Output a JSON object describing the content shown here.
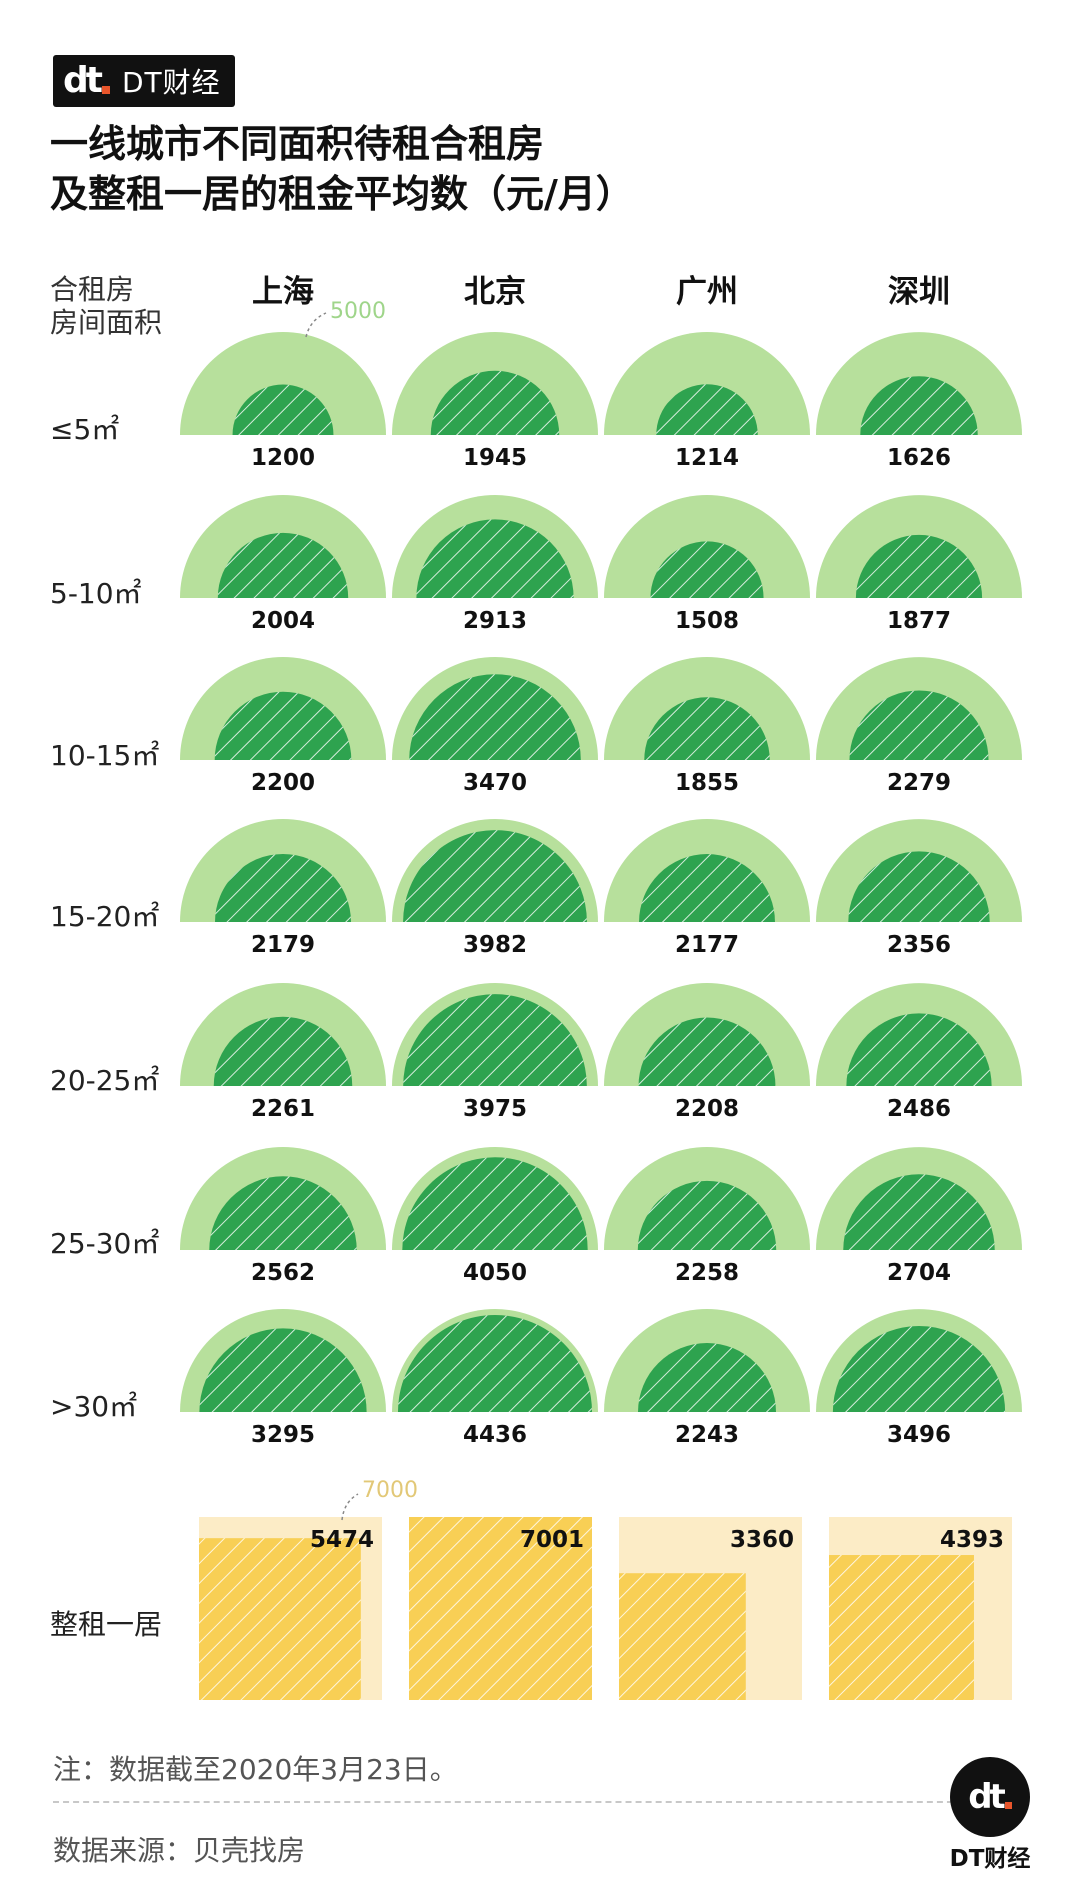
{
  "brand": {
    "name": "DT财经",
    "mark": "dt"
  },
  "title_line1": "一线城市不同面积待租合租房",
  "title_line2": "及整租一居的租金平均数（元/月）",
  "axis_header_line1": "合租房",
  "axis_header_line2": "房间面积",
  "cities": [
    "上海",
    "北京",
    "广州",
    "深圳"
  ],
  "row_labels": [
    "≤5㎡",
    "5-10㎡",
    "10-15㎡",
    "15-20㎡",
    "20-25㎡",
    "25-30㎡",
    ">30㎡"
  ],
  "scale_label_shared": "5000",
  "whole_label": "整租一居",
  "scale_label_whole": "7000",
  "note": "注：数据截至2020年3月23日。",
  "source": "数据来源：贝壳找房",
  "colors": {
    "shared_outer": "#b7e09c",
    "shared_inner": "#2ea34f",
    "whole_outer": "#fcecc6",
    "whole_inner": "#f8cf55",
    "scale_text_green": "#9fd58a",
    "scale_text_yellow": "#e2c877"
  },
  "icons": {
    "brand_logo": "dt-logo",
    "scale_pointer": "curved-arrow-icon"
  },
  "chart_data": {
    "type": "semicircle-area",
    "series": [
      {
        "name": "合租房",
        "max": 5000,
        "categories": [
          "上海",
          "北京",
          "广州",
          "深圳"
        ],
        "rows": [
          {
            "label": "≤5㎡",
            "values": [
              1200,
              1945,
              1214,
              1626
            ]
          },
          {
            "label": "5-10㎡",
            "values": [
              2004,
              2913,
              1508,
              1877
            ]
          },
          {
            "label": "10-15㎡",
            "values": [
              2200,
              3470,
              1855,
              2279
            ]
          },
          {
            "label": "15-20㎡",
            "values": [
              2179,
              3982,
              2177,
              2356
            ]
          },
          {
            "label": "20-25㎡",
            "values": [
              2261,
              3975,
              2208,
              2486
            ]
          },
          {
            "label": "25-30㎡",
            "values": [
              2562,
              4050,
              2258,
              2704
            ]
          },
          {
            "label": ">30㎡",
            "values": [
              3295,
              4436,
              2243,
              3496
            ]
          }
        ]
      },
      {
        "name": "整租一居",
        "max": 7000,
        "categories": [
          "上海",
          "北京",
          "广州",
          "深圳"
        ],
        "values": [
          5474,
          7001,
          3360,
          4393
        ]
      }
    ]
  }
}
